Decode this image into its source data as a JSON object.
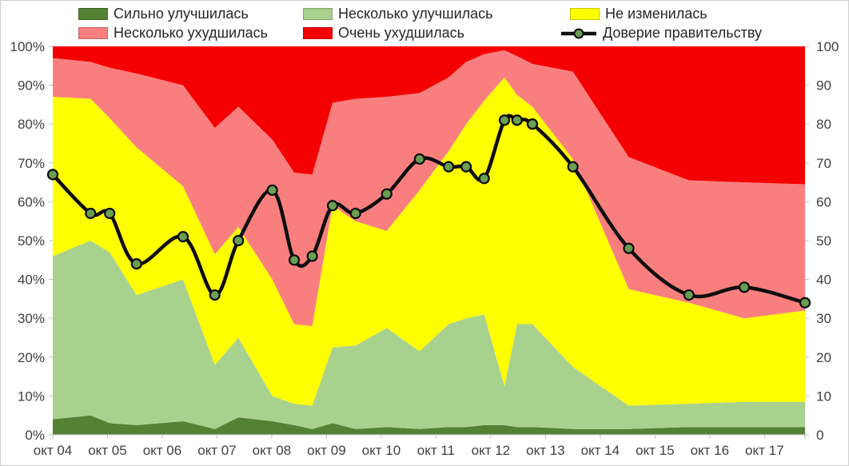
{
  "legend": [
    {
      "key": "strongly-improved",
      "label": "Сильно улучшилась",
      "color": "#548235",
      "type": "box"
    },
    {
      "key": "somewhat-improved",
      "label": "Несколько улучшилась",
      "color": "#a9d18e",
      "type": "box"
    },
    {
      "key": "unchanged",
      "label": "Не изменилась",
      "color": "#ffff00",
      "type": "box"
    },
    {
      "key": "somewhat-worsened",
      "label": "Несколько ухудшилась",
      "color": "#f97f7f",
      "type": "box"
    },
    {
      "key": "strongly-worsened",
      "label": "Очень ухудшилась",
      "color": "#f40000",
      "type": "box"
    },
    {
      "key": "government-trust",
      "label": "Доверие правительству",
      "color": "#0d0d0d",
      "type": "line",
      "marker_color": "#6a9e51"
    }
  ],
  "axes": {
    "y_left": [
      "0%",
      "10%",
      "20%",
      "30%",
      "40%",
      "50%",
      "60%",
      "70%",
      "80%",
      "90%",
      "100%"
    ],
    "y_right": [
      "0",
      "10",
      "20",
      "30",
      "40",
      "50",
      "60",
      "70",
      "80",
      "90",
      "100"
    ],
    "x": [
      "окт 04",
      "окт 05",
      "окт 06",
      "окт 07",
      "окт 08",
      "окт 09",
      "окт 10",
      "окт 11",
      "окт 12",
      "окт 13",
      "окт 14",
      "окт 15",
      "окт 16",
      "окт 17"
    ]
  },
  "chart_data": {
    "type": "area",
    "subtype": "stacked-area-with-line-overlay",
    "stacking": "percent, all waves sum to 100",
    "ylim": [
      0,
      100
    ],
    "grid": false,
    "legend_position": "top",
    "x_years": [
      2004.79,
      2005.48,
      2005.83,
      2006.32,
      2007.17,
      2007.75,
      2008.18,
      2008.8,
      2009.2,
      2009.53,
      2009.9,
      2010.32,
      2010.89,
      2011.49,
      2012.02,
      2012.34,
      2012.67,
      2013.04,
      2013.27,
      2013.55,
      2014.29,
      2015.31,
      2016.41,
      2017.42,
      2018.53
    ],
    "x_axis_tick_years": [
      2004.79,
      2005.79,
      2006.79,
      2007.79,
      2008.79,
      2009.79,
      2010.79,
      2011.79,
      2012.79,
      2013.79,
      2014.79,
      2015.79,
      2016.79,
      2017.79
    ],
    "series": [
      {
        "name": "Сильно улучшилась",
        "color": "#548235",
        "values": [
          4,
          5,
          3,
          2.5,
          3.5,
          1.5,
          4.5,
          3.5,
          2.5,
          1.5,
          3,
          1.5,
          2,
          1.5,
          2,
          2,
          2.5,
          2.5,
          2,
          2,
          1.5,
          1.5,
          2,
          2,
          2
        ]
      },
      {
        "name": "Несколько улучшилась",
        "color": "#a9d18e",
        "values": [
          42,
          45,
          44,
          33.5,
          36.5,
          16.5,
          20.5,
          6.5,
          5.5,
          6,
          19.5,
          21.5,
          25.5,
          20,
          26.5,
          28,
          28.5,
          10,
          26.5,
          26.5,
          16,
          6,
          6,
          6.5,
          6.5
        ]
      },
      {
        "name": "Не изменилась",
        "color": "#ffff00",
        "values": [
          41,
          36.5,
          34.5,
          38,
          24,
          28.5,
          28.5,
          30,
          20.5,
          20.5,
          36.5,
          32,
          25,
          41.5,
          44.5,
          50,
          55,
          79.5,
          59,
          56,
          53.5,
          30,
          26,
          21.5,
          23.5
        ]
      },
      {
        "name": "Несколько ухудшилась",
        "color": "#f97f7f",
        "values": [
          10,
          9.5,
          13,
          19,
          26,
          32.5,
          31,
          36,
          39,
          39,
          26.5,
          31.5,
          34.5,
          25,
          19,
          16,
          12,
          7,
          10,
          11,
          22.5,
          34,
          31.5,
          35,
          32.5
        ]
      },
      {
        "name": "Очень ухудшилась",
        "color": "#f40000",
        "values": [
          3,
          4,
          5.5,
          7,
          10,
          21,
          15.5,
          24,
          32.5,
          33,
          14.5,
          13.5,
          13,
          12,
          8,
          4,
          2,
          1,
          2.5,
          4.5,
          6.5,
          28.5,
          34.5,
          35,
          35.5
        ]
      }
    ],
    "line": {
      "name": "Доверие правительству",
      "color": "#0d0d0d",
      "marker_color": "#6a9e51",
      "smooth": true,
      "values": [
        67,
        57,
        57,
        44,
        51,
        36,
        50,
        63,
        45,
        46,
        59,
        57,
        62,
        71,
        69,
        69,
        66,
        81,
        81,
        80,
        69,
        48,
        36,
        38,
        34
      ]
    }
  }
}
